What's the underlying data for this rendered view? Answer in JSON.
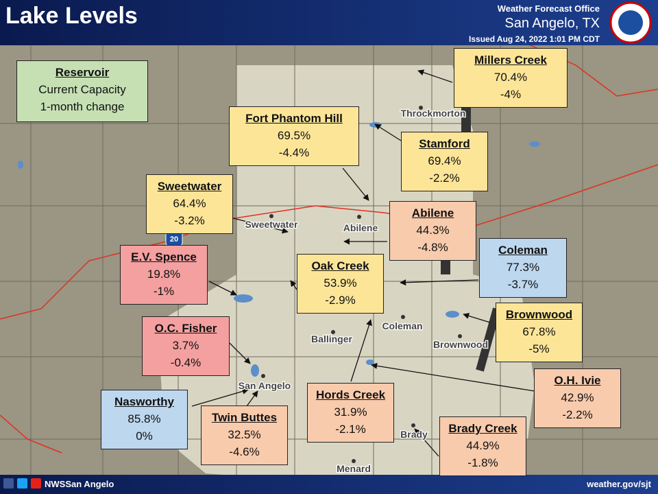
{
  "header": {
    "title": "Lake Levels",
    "office": "Weather Forecast Office",
    "city": "San Angelo, TX",
    "issued": "Issued Aug 24, 2022 1:01 PM CDT"
  },
  "legend": {
    "title": "Reservoir",
    "line1": "Current Capacity",
    "line2": "1-month change"
  },
  "reservoirs": [
    {
      "name": "Millers Creek",
      "capacity": "70.4%",
      "change": "-4%"
    },
    {
      "name": "Fort Phantom Hill",
      "capacity": "69.5%",
      "change": "-4.4%"
    },
    {
      "name": "Stamford",
      "capacity": "69.4%",
      "change": "-2.2%"
    },
    {
      "name": "Sweetwater",
      "capacity": "64.4%",
      "change": "-3.2%"
    },
    {
      "name": "Abilene",
      "capacity": "44.3%",
      "change": "-4.8%"
    },
    {
      "name": "Coleman",
      "capacity": "77.3%",
      "change": "-3.7%"
    },
    {
      "name": "E.V. Spence",
      "capacity": "19.8%",
      "change": "-1%"
    },
    {
      "name": "Oak Creek",
      "capacity": "53.9%",
      "change": "-2.9%"
    },
    {
      "name": "Brownwood",
      "capacity": "67.8%",
      "change": "-5%"
    },
    {
      "name": "O.C. Fisher",
      "capacity": "3.7%",
      "change": "-0.4%"
    },
    {
      "name": "O.H. Ivie",
      "capacity": "42.9%",
      "change": "-2.2%"
    },
    {
      "name": "Hords Creek",
      "capacity": "31.9%",
      "change": "-2.1%"
    },
    {
      "name": "Nasworthy",
      "capacity": "85.8%",
      "change": "0%"
    },
    {
      "name": "Twin Buttes",
      "capacity": "32.5%",
      "change": "-4.6%"
    },
    {
      "name": "Brady Creek",
      "capacity": "44.9%",
      "change": "-1.8%"
    }
  ],
  "towns": [
    "Throckmorton",
    "Sweetwater",
    "Abilene",
    "Coleman",
    "Ballinger",
    "Brownwood",
    "San Angelo",
    "Brady",
    "Menard"
  ],
  "interstate": "20",
  "footer": {
    "handle": "NWSSan Angelo",
    "url": "weather.gov/sjt"
  }
}
